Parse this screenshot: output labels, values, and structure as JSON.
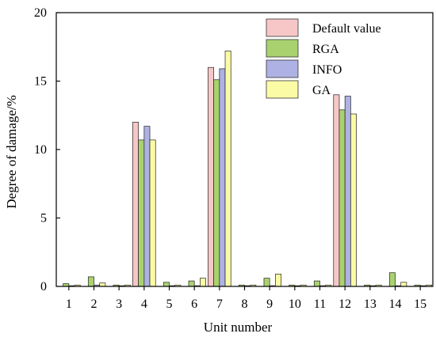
{
  "chart_data": {
    "type": "bar",
    "categories": [
      "1",
      "2",
      "3",
      "4",
      "5",
      "6",
      "7",
      "8",
      "9",
      "10",
      "11",
      "12",
      "13",
      "14",
      "15"
    ],
    "series": [
      {
        "name": "Default value",
        "color": "#f7c7c7",
        "values": [
          0,
          0,
          0,
          12.0,
          0,
          0,
          16.0,
          0,
          0,
          0,
          0,
          14.0,
          0,
          0,
          0
        ]
      },
      {
        "name": "RGA",
        "color": "#a9d26f",
        "values": [
          0.2,
          0.7,
          0.1,
          10.7,
          0.3,
          0.4,
          15.1,
          0.1,
          0.6,
          0.1,
          0.4,
          12.9,
          0.1,
          1.0,
          0.1
        ]
      },
      {
        "name": "INFO",
        "color": "#aeb1e3",
        "values": [
          0.05,
          0.1,
          0.05,
          11.7,
          0.05,
          0.05,
          15.9,
          0.05,
          0.05,
          0.05,
          0.05,
          13.9,
          0.05,
          0.05,
          0.05
        ]
      },
      {
        "name": "GA",
        "color": "#fbfba6",
        "values": [
          0.1,
          0.25,
          0.1,
          10.7,
          0.1,
          0.6,
          17.2,
          0.1,
          0.9,
          0.1,
          0.1,
          12.6,
          0.1,
          0.3,
          0.1
        ]
      }
    ],
    "xlabel": "Unit number",
    "ylabel": "Degree of damage/%",
    "ylim": [
      0,
      20
    ],
    "yticks": [
      "0",
      "5",
      "10",
      "15",
      "20"
    ],
    "legend_position": "top-right",
    "grid": false
  }
}
